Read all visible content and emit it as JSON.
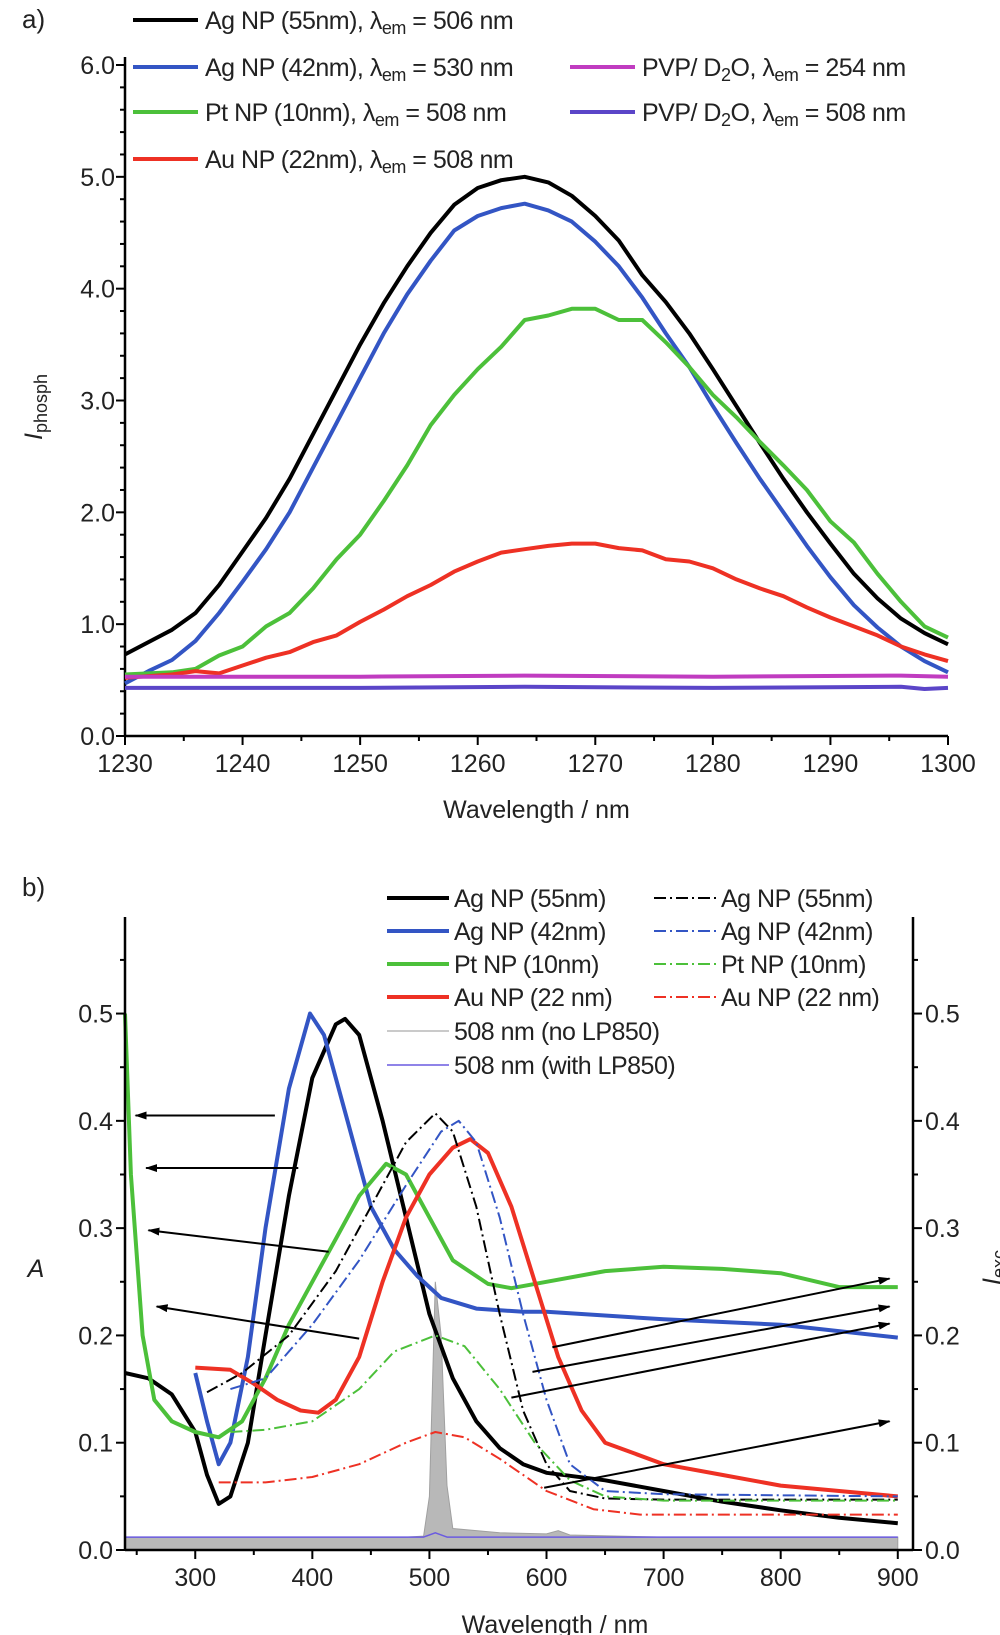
{
  "chart_data": [
    {
      "panel_label": "a)",
      "type": "line",
      "xlabel": "Wavelength / nm",
      "ylabel": {
        "main": "I",
        "sub": "phosph"
      },
      "xlim": [
        1230,
        1300
      ],
      "ylim": [
        0,
        6.0
      ],
      "xticks": [
        1230,
        1240,
        1250,
        1260,
        1270,
        1280,
        1290,
        1300
      ],
      "yticks": [
        "0.0",
        "1.0",
        "2.0",
        "3.0",
        "4.0",
        "5.0",
        "6.0"
      ],
      "grid": false,
      "legend_placement": "top",
      "series": [
        {
          "name": "Ag NP (55nm), λem = 506 nm",
          "label_parts": [
            [
              "Ag NP (55nm), λ",
              ""
            ],
            [
              "em",
              "sub"
            ],
            [
              " = 506 nm",
              ""
            ]
          ],
          "color": "#000000",
          "x": [
            1230,
            1234,
            1236,
            1238,
            1240,
            1242,
            1244,
            1246,
            1248,
            1250,
            1252,
            1254,
            1256,
            1258,
            1260,
            1262,
            1264,
            1266,
            1268,
            1270,
            1272,
            1274,
            1276,
            1278,
            1280,
            1282,
            1284,
            1286,
            1288,
            1290,
            1292,
            1294,
            1296,
            1298,
            1300
          ],
          "y": [
            0.73,
            0.95,
            1.1,
            1.35,
            1.65,
            1.95,
            2.3,
            2.7,
            3.1,
            3.5,
            3.87,
            4.2,
            4.5,
            4.75,
            4.9,
            4.97,
            5.0,
            4.95,
            4.83,
            4.65,
            4.43,
            4.12,
            3.88,
            3.6,
            3.28,
            2.95,
            2.62,
            2.3,
            2.0,
            1.72,
            1.45,
            1.23,
            1.05,
            0.92,
            0.82
          ]
        },
        {
          "name": "Ag NP (42nm), λem = 530 nm",
          "label_parts": [
            [
              "Ag NP (42nm), λ",
              ""
            ],
            [
              "em",
              "sub"
            ],
            [
              " = 530 nm",
              ""
            ]
          ],
          "color": "#3355c4",
          "x": [
            1230,
            1232,
            1234,
            1236,
            1238,
            1240,
            1242,
            1244,
            1246,
            1248,
            1250,
            1252,
            1254,
            1256,
            1258,
            1260,
            1262,
            1264,
            1266,
            1268,
            1270,
            1272,
            1274,
            1276,
            1278,
            1280,
            1282,
            1284,
            1286,
            1288,
            1290,
            1292,
            1294,
            1296,
            1298,
            1300
          ],
          "y": [
            0.47,
            0.58,
            0.68,
            0.85,
            1.1,
            1.38,
            1.67,
            2.0,
            2.4,
            2.8,
            3.2,
            3.6,
            3.95,
            4.25,
            4.52,
            4.65,
            4.72,
            4.76,
            4.7,
            4.6,
            4.42,
            4.2,
            3.92,
            3.6,
            3.3,
            2.95,
            2.62,
            2.3,
            2.0,
            1.7,
            1.42,
            1.17,
            0.97,
            0.8,
            0.67,
            0.57
          ]
        },
        {
          "name": "Pt NP (10nm), λem = 508 nm",
          "label_parts": [
            [
              "Pt NP (10nm), λ",
              ""
            ],
            [
              "em",
              "sub"
            ],
            [
              " = 508 nm",
              ""
            ]
          ],
          "color": "#4cc03a",
          "x": [
            1230,
            1234,
            1236,
            1238,
            1240,
            1242,
            1244,
            1246,
            1248,
            1250,
            1252,
            1254,
            1256,
            1258,
            1260,
            1262,
            1264,
            1266,
            1268,
            1270,
            1272,
            1274,
            1276,
            1278,
            1280,
            1282,
            1284,
            1286,
            1288,
            1290,
            1292,
            1294,
            1296,
            1298,
            1300
          ],
          "y": [
            0.55,
            0.57,
            0.6,
            0.72,
            0.8,
            0.98,
            1.1,
            1.32,
            1.58,
            1.8,
            2.1,
            2.42,
            2.78,
            3.05,
            3.28,
            3.48,
            3.72,
            3.76,
            3.82,
            3.82,
            3.72,
            3.72,
            3.52,
            3.3,
            3.05,
            2.85,
            2.63,
            2.42,
            2.2,
            1.92,
            1.73,
            1.45,
            1.2,
            0.98,
            0.88
          ]
        },
        {
          "name": "Au NP (22nm), λem = 508 nm",
          "label_parts": [
            [
              "Au NP (22nm), λ",
              ""
            ],
            [
              "em",
              "sub"
            ],
            [
              " = 508 nm",
              ""
            ]
          ],
          "color": "#ee3124",
          "x": [
            1230,
            1234,
            1236,
            1238,
            1240,
            1242,
            1244,
            1246,
            1248,
            1250,
            1252,
            1254,
            1256,
            1258,
            1260,
            1262,
            1264,
            1266,
            1268,
            1270,
            1272,
            1274,
            1276,
            1278,
            1280,
            1282,
            1284,
            1286,
            1288,
            1290,
            1292,
            1294,
            1296,
            1298,
            1300
          ],
          "y": [
            0.52,
            0.55,
            0.58,
            0.56,
            0.63,
            0.7,
            0.75,
            0.84,
            0.9,
            1.02,
            1.13,
            1.25,
            1.35,
            1.47,
            1.56,
            1.64,
            1.67,
            1.7,
            1.72,
            1.72,
            1.68,
            1.66,
            1.58,
            1.56,
            1.5,
            1.4,
            1.32,
            1.25,
            1.15,
            1.06,
            0.98,
            0.9,
            0.8,
            0.73,
            0.67
          ]
        },
        {
          "name": "PVP/ D2O, λem = 254 nm",
          "label_parts": [
            [
              "PVP/ D",
              ""
            ],
            [
              "2",
              "sub"
            ],
            [
              "O, λ",
              ""
            ],
            [
              "em",
              "sub"
            ],
            [
              " = 254 nm",
              ""
            ]
          ],
          "color": "#c03cc0",
          "x": [
            1230,
            1250,
            1264,
            1280,
            1296,
            1300
          ],
          "y": [
            0.53,
            0.53,
            0.54,
            0.53,
            0.54,
            0.53
          ]
        },
        {
          "name": "PVP/ D2O, λem = 508 nm",
          "label_parts": [
            [
              "PVP/ D",
              ""
            ],
            [
              "2",
              "sub"
            ],
            [
              "O, λ",
              ""
            ],
            [
              "em",
              "sub"
            ],
            [
              " = 508 nm",
              ""
            ]
          ],
          "color": "#5b45c8",
          "x": [
            1230,
            1250,
            1264,
            1280,
            1296,
            1298,
            1300
          ],
          "y": [
            0.43,
            0.43,
            0.44,
            0.43,
            0.44,
            0.42,
            0.43
          ]
        }
      ]
    },
    {
      "panel_label": "b)",
      "type": "line",
      "xlabel": "Wavelength / nm",
      "ylabel": "A",
      "ylabel_right": {
        "main": "I",
        "sub": "exc"
      },
      "xlim": [
        240,
        913
      ],
      "ylim": [
        0,
        0.59
      ],
      "ylim_right": [
        0,
        0.59
      ],
      "xticks": [
        300,
        400,
        500,
        600,
        700,
        800,
        900
      ],
      "yticks": [
        "0.0",
        "0.1",
        "0.2",
        "0.3",
        "0.4",
        "0.5"
      ],
      "yticks_right": [
        "0.0",
        "0.1",
        "0.2",
        "0.3",
        "0.4",
        "0.5"
      ],
      "grid": false,
      "legend_placement": "top-right",
      "series": [
        {
          "name": "Ag NP (55nm)",
          "axis": "left",
          "style": "solid",
          "color": "#000000",
          "x": [
            240,
            260,
            280,
            300,
            310,
            320,
            330,
            345,
            360,
            380,
            400,
            420,
            428,
            440,
            460,
            480,
            500,
            520,
            540,
            560,
            580,
            600,
            650,
            700,
            750,
            800,
            850,
            900
          ],
          "y": [
            0.165,
            0.16,
            0.145,
            0.11,
            0.07,
            0.043,
            0.05,
            0.1,
            0.2,
            0.33,
            0.44,
            0.49,
            0.495,
            0.48,
            0.4,
            0.31,
            0.22,
            0.16,
            0.12,
            0.095,
            0.08,
            0.072,
            0.065,
            0.055,
            0.045,
            0.037,
            0.03,
            0.025
          ]
        },
        {
          "name": "Ag NP (42nm)",
          "axis": "left",
          "style": "solid",
          "color": "#3355c4",
          "x": [
            300,
            310,
            320,
            330,
            345,
            360,
            380,
            398,
            410,
            430,
            450,
            470,
            490,
            510,
            540,
            580,
            600,
            700,
            800,
            900
          ],
          "y": [
            0.165,
            0.12,
            0.08,
            0.1,
            0.18,
            0.3,
            0.43,
            0.5,
            0.48,
            0.4,
            0.32,
            0.28,
            0.255,
            0.235,
            0.225,
            0.222,
            0.222,
            0.215,
            0.21,
            0.198
          ]
        },
        {
          "name": "Pt NP (10nm)",
          "axis": "left",
          "style": "solid",
          "color": "#4cc03a",
          "x": [
            240,
            245,
            255,
            265,
            280,
            300,
            320,
            340,
            360,
            380,
            400,
            420,
            440,
            463,
            480,
            500,
            520,
            550,
            570,
            600,
            650,
            700,
            750,
            800,
            850,
            900
          ],
          "y": [
            0.5,
            0.35,
            0.2,
            0.14,
            0.12,
            0.11,
            0.105,
            0.12,
            0.16,
            0.21,
            0.25,
            0.29,
            0.33,
            0.36,
            0.35,
            0.31,
            0.27,
            0.248,
            0.244,
            0.25,
            0.26,
            0.264,
            0.262,
            0.258,
            0.245,
            0.245
          ]
        },
        {
          "name": "Au NP (22 nm)",
          "axis": "left",
          "style": "solid",
          "color": "#ee3124",
          "x": [
            300,
            330,
            350,
            370,
            390,
            405,
            420,
            440,
            460,
            480,
            500,
            520,
            535,
            550,
            570,
            590,
            610,
            630,
            650,
            700,
            750,
            800,
            850,
            900
          ],
          "y": [
            0.17,
            0.168,
            0.155,
            0.14,
            0.13,
            0.128,
            0.14,
            0.18,
            0.25,
            0.31,
            0.35,
            0.375,
            0.383,
            0.37,
            0.32,
            0.25,
            0.18,
            0.13,
            0.1,
            0.08,
            0.07,
            0.06,
            0.055,
            0.05
          ]
        },
        {
          "name": "508 nm (no LP850)",
          "axis": "right",
          "style": "filled",
          "color": "#b8b8b8",
          "x": [
            240,
            480,
            495,
            500,
            505,
            510,
            515,
            520,
            560,
            600,
            610,
            620,
            700,
            900
          ],
          "y": [
            0.012,
            0.012,
            0.013,
            0.05,
            0.25,
            0.2,
            0.06,
            0.02,
            0.016,
            0.015,
            0.018,
            0.014,
            0.012,
            0.012
          ]
        },
        {
          "name": "508 nm (with LP850)",
          "axis": "right",
          "style": "thin",
          "color": "#6a5ae0",
          "x": [
            240,
            495,
            505,
            515,
            900
          ],
          "y": [
            0.012,
            0.012,
            0.016,
            0.012,
            0.012
          ]
        },
        {
          "name": "Ag NP (55nm)",
          "axis": "right",
          "style": "dashdot",
          "color": "#000000",
          "x": [
            310,
            340,
            380,
            420,
            450,
            480,
            505,
            520,
            540,
            560,
            580,
            600,
            620,
            650,
            700,
            900
          ],
          "y": [
            0.147,
            0.165,
            0.2,
            0.26,
            0.32,
            0.38,
            0.407,
            0.39,
            0.32,
            0.22,
            0.13,
            0.08,
            0.055,
            0.048,
            0.047,
            0.047
          ]
        },
        {
          "name": "Ag NP (42nm)",
          "axis": "right",
          "style": "dashdot",
          "color": "#3355c4",
          "x": [
            330,
            360,
            400,
            440,
            480,
            510,
            525,
            540,
            560,
            580,
            600,
            620,
            650,
            700,
            900
          ],
          "y": [
            0.15,
            0.16,
            0.21,
            0.27,
            0.34,
            0.39,
            0.4,
            0.38,
            0.31,
            0.22,
            0.14,
            0.08,
            0.055,
            0.052,
            0.05
          ]
        },
        {
          "name": "Pt NP (10nm)",
          "axis": "right",
          "style": "dashdot",
          "color": "#4cc03a",
          "x": [
            330,
            360,
            400,
            440,
            470,
            505,
            530,
            560,
            590,
            620,
            650,
            700,
            900
          ],
          "y": [
            0.11,
            0.112,
            0.12,
            0.15,
            0.185,
            0.2,
            0.19,
            0.15,
            0.1,
            0.065,
            0.05,
            0.046,
            0.046
          ]
        },
        {
          "name": "Au NP (22 nm)",
          "axis": "right",
          "style": "dashdot",
          "color": "#ee3124",
          "x": [
            320,
            360,
            400,
            440,
            480,
            505,
            530,
            560,
            600,
            640,
            680,
            900
          ],
          "y": [
            0.063,
            0.063,
            0.068,
            0.08,
            0.1,
            0.11,
            0.105,
            0.085,
            0.055,
            0.038,
            0.033,
            0.033
          ]
        }
      ],
      "annotations": {
        "arrows_to_left_axis": [
          {
            "from": [
              368,
              0.405
            ],
            "to": [
              249,
              0.405
            ]
          },
          {
            "from": [
              388,
              0.356
            ],
            "to": [
              258,
              0.356
            ]
          },
          {
            "from": [
              414,
              0.278
            ],
            "to": [
              260,
              0.298
            ]
          },
          {
            "from": [
              440,
              0.197
            ],
            "to": [
              267,
              0.227
            ]
          }
        ],
        "arrows_to_right_axis": [
          {
            "from": [
              605,
              0.189
            ],
            "to": [
              893,
              0.253
            ]
          },
          {
            "from": [
              588,
              0.166
            ],
            "to": [
              893,
              0.227
            ]
          },
          {
            "from": [
              570,
              0.142
            ],
            "to": [
              893,
              0.211
            ]
          },
          {
            "from": [
              598,
              0.058
            ],
            "to": [
              893,
              0.12
            ]
          }
        ]
      }
    }
  ]
}
